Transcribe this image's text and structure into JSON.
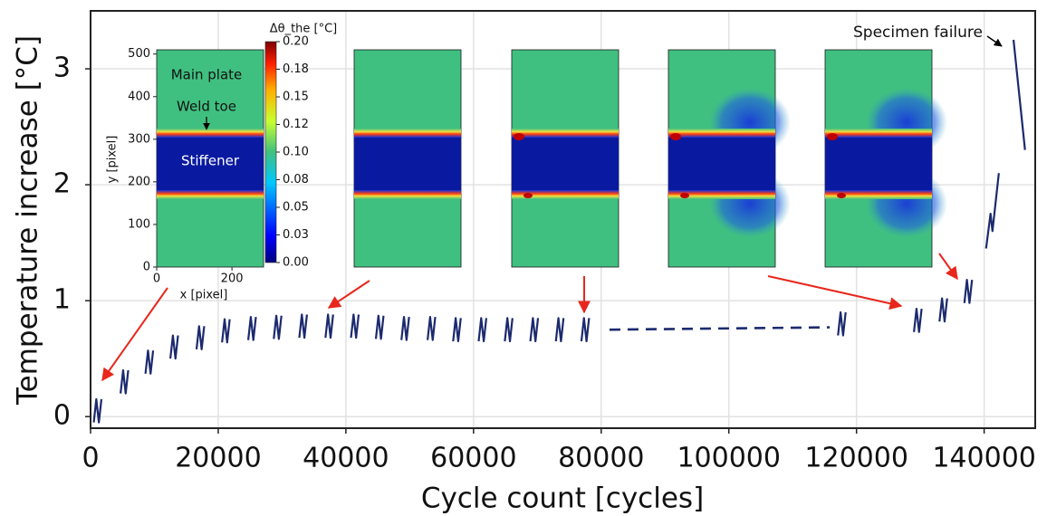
{
  "chart_data": {
    "type": "line",
    "xlabel": "Cycle count [cycles]",
    "ylabel": "Temperature increase [°C]",
    "xlim": [
      0,
      148000
    ],
    "ylim": [
      -0.1,
      3.5
    ],
    "xticks": [
      0,
      20000,
      40000,
      60000,
      80000,
      100000,
      120000,
      140000
    ],
    "yticks": [
      0,
      1,
      2,
      3
    ],
    "grid": true,
    "series": [
      {
        "color": "#1c2a6e",
        "style": "solid",
        "x": [
          500,
          900,
          1300,
          1700,
          null,
          4700,
          5100,
          5500,
          5900,
          null,
          8600,
          9000,
          9400,
          9800,
          null,
          12500,
          12900,
          13300,
          13700,
          null,
          16600,
          17000,
          17400,
          17800,
          null,
          20600,
          21000,
          21400,
          21800,
          null,
          24700,
          25100,
          25500,
          25900,
          null,
          28700,
          29100,
          29500,
          29900,
          null,
          32700,
          33100,
          33500,
          33900,
          null,
          36800,
          37200,
          37600,
          38000,
          null,
          40800,
          41200,
          41600,
          42000,
          null,
          44700,
          45100,
          45500,
          45900,
          null,
          48700,
          49100,
          49500,
          49900,
          null,
          52800,
          53200,
          53600,
          54000,
          null,
          56800,
          57200,
          57600,
          58000,
          null,
          60800,
          61200,
          61600,
          62000,
          null,
          64900,
          65300,
          65700,
          66100,
          null,
          68900,
          69300,
          69700,
          70100,
          null,
          72900,
          73300,
          73700,
          74100,
          null,
          76900,
          77300,
          77700,
          78100,
          null,
          117100,
          117500,
          117900,
          118300,
          null,
          129000,
          129400,
          129800,
          130200,
          null,
          133000,
          133400,
          133800,
          134200,
          null,
          136900,
          137300,
          137700,
          138100,
          null,
          140300,
          141000,
          141300,
          142300,
          null,
          144600,
          146400
        ],
        "values": [
          -0.05,
          0.15,
          -0.05,
          0.15,
          null,
          0.2,
          0.4,
          0.2,
          0.4,
          null,
          0.37,
          0.57,
          0.37,
          0.57,
          null,
          0.5,
          0.7,
          0.5,
          0.7,
          null,
          0.58,
          0.78,
          0.58,
          0.78,
          null,
          0.64,
          0.84,
          0.64,
          0.84,
          null,
          0.66,
          0.86,
          0.66,
          0.86,
          null,
          0.67,
          0.87,
          0.67,
          0.87,
          null,
          0.68,
          0.88,
          0.68,
          0.88,
          null,
          0.68,
          0.88,
          0.68,
          0.88,
          null,
          0.68,
          0.88,
          0.68,
          0.88,
          null,
          0.67,
          0.87,
          0.67,
          0.87,
          null,
          0.66,
          0.86,
          0.66,
          0.86,
          null,
          0.66,
          0.86,
          0.66,
          0.86,
          null,
          0.65,
          0.85,
          0.65,
          0.85,
          null,
          0.65,
          0.85,
          0.65,
          0.85,
          null,
          0.65,
          0.85,
          0.65,
          0.85,
          null,
          0.65,
          0.85,
          0.65,
          0.85,
          null,
          0.65,
          0.85,
          0.65,
          0.85,
          null,
          0.65,
          0.85,
          0.65,
          0.85,
          null,
          0.7,
          0.9,
          0.7,
          0.9,
          null,
          0.73,
          0.93,
          0.73,
          0.93,
          null,
          0.82,
          1.02,
          0.82,
          1.02,
          null,
          0.98,
          1.18,
          0.98,
          1.18,
          null,
          1.45,
          1.75,
          1.6,
          2.1,
          null,
          3.25,
          2.3
        ]
      },
      {
        "color": "#1c2a6e",
        "style": "dashed",
        "x": [
          81300,
          115800
        ],
        "values": [
          0.75,
          0.77
        ]
      }
    ],
    "annotations": [
      "Specimen failure"
    ],
    "inset": {
      "texts": [
        "Main plate",
        "Weld toe",
        "Stiffener"
      ],
      "xlabel": "x [pixel]",
      "ylabel": "y [pixel]",
      "xlim": [
        0,
        284
      ],
      "ylim": [
        0,
        510
      ],
      "xticks": [
        0,
        200
      ],
      "yticks": [
        0,
        100,
        200,
        300,
        400,
        500
      ],
      "colorbar": {
        "label": "Δθ_the [°C]",
        "lim": [
          0,
          0.2
        ],
        "ticks": [
          {
            "value": 0,
            "label": "0.00"
          },
          {
            "value": 0.025,
            "label": "0.03"
          },
          {
            "value": 0.05,
            "label": "0.05"
          },
          {
            "value": 0.075,
            "label": "0.08"
          },
          {
            "value": 0.1,
            "label": "0.10"
          },
          {
            "value": 0.125,
            "label": "0.12"
          },
          {
            "value": 0.15,
            "label": "0.15"
          },
          {
            "value": 0.175,
            "label": "0.18"
          },
          {
            "value": 0.2,
            "label": "0.20"
          }
        ]
      }
    }
  }
}
